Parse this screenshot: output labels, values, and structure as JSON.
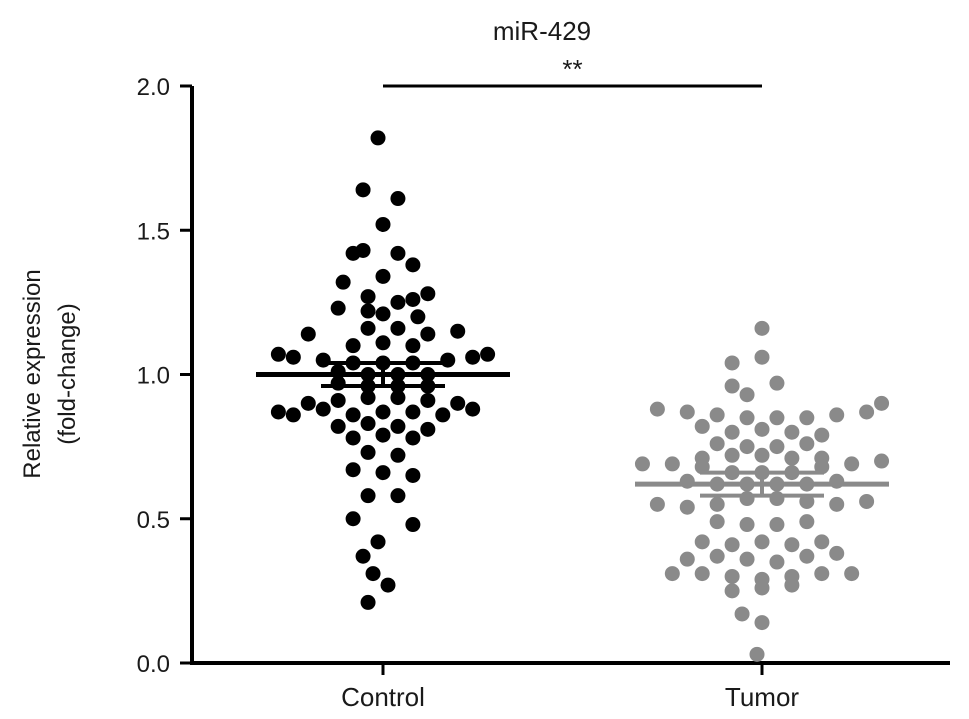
{
  "chart_data": {
    "type": "scatter",
    "title": "miR-429",
    "ylabel_lines": [
      "Relative expression",
      "(fold-change)"
    ],
    "xlabel": "",
    "categories": [
      "Control",
      "Tumor"
    ],
    "ylim": [
      0,
      2.0
    ],
    "yticks": [
      "0.0",
      "0.5",
      "1.0",
      "1.5",
      "2.0"
    ],
    "ytick_values": [
      0,
      0.5,
      1.0,
      1.5,
      2.0
    ],
    "grid": false,
    "legend": "none",
    "significance": {
      "label": "**",
      "between": [
        "Control",
        "Tumor"
      ],
      "y": 2.0
    },
    "series": [
      {
        "category": "Control",
        "color": "#000000",
        "mean": 1.0,
        "sem": [
          0.96,
          1.04
        ],
        "points": [
          {
            "x": -0.01,
            "y": 1.82
          },
          {
            "x": -0.04,
            "y": 1.64
          },
          {
            "x": 0.03,
            "y": 1.61
          },
          {
            "x": 0.0,
            "y": 1.52
          },
          {
            "x": -0.06,
            "y": 1.42
          },
          {
            "x": -0.04,
            "y": 1.43
          },
          {
            "x": 0.03,
            "y": 1.42
          },
          {
            "x": 0.06,
            "y": 1.38
          },
          {
            "x": -0.08,
            "y": 1.32
          },
          {
            "x": 0.0,
            "y": 1.34
          },
          {
            "x": -0.03,
            "y": 1.27
          },
          {
            "x": 0.03,
            "y": 1.25
          },
          {
            "x": 0.06,
            "y": 1.26
          },
          {
            "x": 0.09,
            "y": 1.28
          },
          {
            "x": -0.09,
            "y": 1.23
          },
          {
            "x": -0.03,
            "y": 1.22
          },
          {
            "x": 0.0,
            "y": 1.21
          },
          {
            "x": 0.07,
            "y": 1.2
          },
          {
            "x": -0.15,
            "y": 1.14
          },
          {
            "x": -0.03,
            "y": 1.16
          },
          {
            "x": 0.03,
            "y": 1.16
          },
          {
            "x": 0.09,
            "y": 1.14
          },
          {
            "x": 0.15,
            "y": 1.15
          },
          {
            "x": -0.06,
            "y": 1.1
          },
          {
            "x": 0.0,
            "y": 1.11
          },
          {
            "x": 0.06,
            "y": 1.1
          },
          {
            "x": -0.21,
            "y": 1.07
          },
          {
            "x": -0.18,
            "y": 1.06
          },
          {
            "x": -0.12,
            "y": 1.05
          },
          {
            "x": -0.06,
            "y": 1.04
          },
          {
            "x": 0.0,
            "y": 1.04
          },
          {
            "x": 0.06,
            "y": 1.04
          },
          {
            "x": 0.13,
            "y": 1.05
          },
          {
            "x": 0.18,
            "y": 1.06
          },
          {
            "x": 0.21,
            "y": 1.07
          },
          {
            "x": -0.09,
            "y": 1.01
          },
          {
            "x": -0.03,
            "y": 1.0
          },
          {
            "x": 0.03,
            "y": 1.0
          },
          {
            "x": 0.09,
            "y": 1.0
          },
          {
            "x": -0.09,
            "y": 0.97
          },
          {
            "x": -0.03,
            "y": 0.96
          },
          {
            "x": 0.03,
            "y": 0.96
          },
          {
            "x": 0.09,
            "y": 0.96
          },
          {
            "x": -0.15,
            "y": 0.9
          },
          {
            "x": -0.09,
            "y": 0.91
          },
          {
            "x": -0.03,
            "y": 0.92
          },
          {
            "x": 0.03,
            "y": 0.92
          },
          {
            "x": 0.09,
            "y": 0.91
          },
          {
            "x": 0.15,
            "y": 0.9
          },
          {
            "x": -0.21,
            "y": 0.87
          },
          {
            "x": -0.18,
            "y": 0.86
          },
          {
            "x": -0.12,
            "y": 0.88
          },
          {
            "x": -0.06,
            "y": 0.86
          },
          {
            "x": 0.0,
            "y": 0.87
          },
          {
            "x": 0.06,
            "y": 0.87
          },
          {
            "x": 0.12,
            "y": 0.86
          },
          {
            "x": 0.18,
            "y": 0.88
          },
          {
            "x": -0.09,
            "y": 0.82
          },
          {
            "x": -0.03,
            "y": 0.83
          },
          {
            "x": 0.03,
            "y": 0.82
          },
          {
            "x": 0.09,
            "y": 0.81
          },
          {
            "x": -0.06,
            "y": 0.78
          },
          {
            "x": 0.0,
            "y": 0.79
          },
          {
            "x": 0.06,
            "y": 0.78
          },
          {
            "x": -0.03,
            "y": 0.73
          },
          {
            "x": 0.03,
            "y": 0.72
          },
          {
            "x": -0.06,
            "y": 0.67
          },
          {
            "x": 0.0,
            "y": 0.66
          },
          {
            "x": 0.06,
            "y": 0.65
          },
          {
            "x": -0.03,
            "y": 0.58
          },
          {
            "x": 0.03,
            "y": 0.58
          },
          {
            "x": -0.06,
            "y": 0.5
          },
          {
            "x": 0.06,
            "y": 0.48
          },
          {
            "x": -0.01,
            "y": 0.42
          },
          {
            "x": -0.04,
            "y": 0.37
          },
          {
            "x": -0.02,
            "y": 0.31
          },
          {
            "x": 0.01,
            "y": 0.27
          },
          {
            "x": -0.03,
            "y": 0.21
          }
        ]
      },
      {
        "category": "Tumor",
        "color": "#8a8a8a",
        "mean": 0.62,
        "sem": [
          0.58,
          0.66
        ],
        "points": [
          {
            "x": 0.0,
            "y": 1.16
          },
          {
            "x": -0.06,
            "y": 1.04
          },
          {
            "x": 0.0,
            "y": 1.06
          },
          {
            "x": -0.06,
            "y": 0.96
          },
          {
            "x": 0.03,
            "y": 0.97
          },
          {
            "x": -0.03,
            "y": 0.93
          },
          {
            "x": -0.21,
            "y": 0.88
          },
          {
            "x": -0.15,
            "y": 0.87
          },
          {
            "x": -0.09,
            "y": 0.86
          },
          {
            "x": -0.03,
            "y": 0.85
          },
          {
            "x": 0.03,
            "y": 0.85
          },
          {
            "x": 0.09,
            "y": 0.85
          },
          {
            "x": 0.15,
            "y": 0.86
          },
          {
            "x": 0.21,
            "y": 0.87
          },
          {
            "x": 0.24,
            "y": 0.9
          },
          {
            "x": -0.12,
            "y": 0.82
          },
          {
            "x": -0.06,
            "y": 0.8
          },
          {
            "x": 0.0,
            "y": 0.81
          },
          {
            "x": 0.06,
            "y": 0.8
          },
          {
            "x": 0.12,
            "y": 0.79
          },
          {
            "x": -0.09,
            "y": 0.76
          },
          {
            "x": -0.03,
            "y": 0.75
          },
          {
            "x": 0.03,
            "y": 0.75
          },
          {
            "x": 0.09,
            "y": 0.76
          },
          {
            "x": -0.12,
            "y": 0.71
          },
          {
            "x": -0.06,
            "y": 0.72
          },
          {
            "x": 0.0,
            "y": 0.72
          },
          {
            "x": 0.06,
            "y": 0.71
          },
          {
            "x": 0.12,
            "y": 0.71
          },
          {
            "x": -0.24,
            "y": 0.69
          },
          {
            "x": -0.18,
            "y": 0.69
          },
          {
            "x": -0.12,
            "y": 0.68
          },
          {
            "x": -0.06,
            "y": 0.66
          },
          {
            "x": 0.0,
            "y": 0.66
          },
          {
            "x": 0.06,
            "y": 0.66
          },
          {
            "x": 0.12,
            "y": 0.68
          },
          {
            "x": 0.18,
            "y": 0.69
          },
          {
            "x": 0.24,
            "y": 0.7
          },
          {
            "x": -0.15,
            "y": 0.63
          },
          {
            "x": -0.09,
            "y": 0.62
          },
          {
            "x": -0.03,
            "y": 0.62
          },
          {
            "x": 0.03,
            "y": 0.62
          },
          {
            "x": 0.09,
            "y": 0.62
          },
          {
            "x": 0.15,
            "y": 0.63
          },
          {
            "x": -0.21,
            "y": 0.55
          },
          {
            "x": -0.15,
            "y": 0.54
          },
          {
            "x": -0.09,
            "y": 0.55
          },
          {
            "x": -0.03,
            "y": 0.57
          },
          {
            "x": 0.03,
            "y": 0.57
          },
          {
            "x": 0.09,
            "y": 0.56
          },
          {
            "x": 0.15,
            "y": 0.55
          },
          {
            "x": 0.21,
            "y": 0.56
          },
          {
            "x": -0.09,
            "y": 0.49
          },
          {
            "x": -0.03,
            "y": 0.48
          },
          {
            "x": 0.03,
            "y": 0.48
          },
          {
            "x": 0.09,
            "y": 0.49
          },
          {
            "x": -0.12,
            "y": 0.42
          },
          {
            "x": -0.06,
            "y": 0.41
          },
          {
            "x": 0.0,
            "y": 0.42
          },
          {
            "x": 0.06,
            "y": 0.41
          },
          {
            "x": 0.12,
            "y": 0.42
          },
          {
            "x": -0.15,
            "y": 0.36
          },
          {
            "x": -0.09,
            "y": 0.37
          },
          {
            "x": -0.03,
            "y": 0.36
          },
          {
            "x": 0.03,
            "y": 0.35
          },
          {
            "x": 0.09,
            "y": 0.37
          },
          {
            "x": 0.15,
            "y": 0.38
          },
          {
            "x": -0.18,
            "y": 0.31
          },
          {
            "x": -0.12,
            "y": 0.31
          },
          {
            "x": -0.06,
            "y": 0.3
          },
          {
            "x": 0.0,
            "y": 0.29
          },
          {
            "x": 0.06,
            "y": 0.3
          },
          {
            "x": 0.12,
            "y": 0.31
          },
          {
            "x": 0.18,
            "y": 0.31
          },
          {
            "x": -0.06,
            "y": 0.25
          },
          {
            "x": 0.0,
            "y": 0.26
          },
          {
            "x": 0.06,
            "y": 0.27
          },
          {
            "x": -0.04,
            "y": 0.17
          },
          {
            "x": 0.0,
            "y": 0.14
          },
          {
            "x": -0.01,
            "y": 0.03
          }
        ]
      }
    ]
  }
}
